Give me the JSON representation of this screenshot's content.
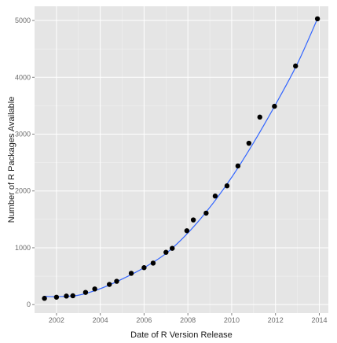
{
  "chart_data": {
    "type": "scatter",
    "title": "",
    "xlabel": "Date of R Version Release",
    "ylabel": "Number of R Packages Available",
    "xlim": [
      "2001-01-01",
      "2014-06-01"
    ],
    "ylim": [
      -150,
      5250
    ],
    "x_ticks": [
      {
        "date": "2002-01-01",
        "label": "2002"
      },
      {
        "date": "2004-01-01",
        "label": "2004"
      },
      {
        "date": "2006-01-01",
        "label": "2006"
      },
      {
        "date": "2008-01-01",
        "label": "2008"
      },
      {
        "date": "2010-01-01",
        "label": "2010"
      },
      {
        "date": "2012-01-01",
        "label": "2012"
      },
      {
        "date": "2014-01-01",
        "label": "2014"
      }
    ],
    "y_ticks": [
      0,
      1000,
      2000,
      3000,
      4000,
      5000
    ],
    "grid": true,
    "legend": "none",
    "background": "#e5e5e5",
    "grid_color": "#ffffff",
    "point_color": "#000000",
    "trend_color": "#3366ff",
    "series": [
      {
        "points": [
          {
            "x": "2001-06-15",
            "y": 110
          },
          {
            "x": "2002-01-01",
            "y": 130
          },
          {
            "x": "2002-06-15",
            "y": 150
          },
          {
            "x": "2002-10-01",
            "y": 155
          },
          {
            "x": "2003-05-01",
            "y": 215
          },
          {
            "x": "2003-10-01",
            "y": 275
          },
          {
            "x": "2004-06-01",
            "y": 355
          },
          {
            "x": "2004-10-01",
            "y": 410
          },
          {
            "x": "2005-06-01",
            "y": 550
          },
          {
            "x": "2006-01-01",
            "y": 650
          },
          {
            "x": "2006-06-01",
            "y": 730
          },
          {
            "x": "2007-01-01",
            "y": 920
          },
          {
            "x": "2007-04-15",
            "y": 990
          },
          {
            "x": "2007-12-15",
            "y": 1300
          },
          {
            "x": "2008-04-01",
            "y": 1490
          },
          {
            "x": "2008-11-01",
            "y": 1610
          },
          {
            "x": "2009-04-01",
            "y": 1910
          },
          {
            "x": "2009-10-15",
            "y": 2090
          },
          {
            "x": "2010-04-15",
            "y": 2440
          },
          {
            "x": "2010-10-15",
            "y": 2840
          },
          {
            "x": "2011-04-15",
            "y": 3300
          },
          {
            "x": "2011-12-15",
            "y": 3490
          },
          {
            "x": "2012-12-01",
            "y": 4200
          },
          {
            "x": "2013-12-01",
            "y": 5030
          }
        ]
      }
    ],
    "trend": [
      {
        "x": "2001-06-15",
        "y": 145
      },
      {
        "x": "2002-01-01",
        "y": 140
      },
      {
        "x": "2003-01-01",
        "y": 165
      },
      {
        "x": "2004-01-01",
        "y": 280
      },
      {
        "x": "2005-01-01",
        "y": 450
      },
      {
        "x": "2006-01-01",
        "y": 650
      },
      {
        "x": "2007-01-01",
        "y": 900
      },
      {
        "x": "2008-01-01",
        "y": 1260
      },
      {
        "x": "2009-01-01",
        "y": 1710
      },
      {
        "x": "2010-01-01",
        "y": 2240
      },
      {
        "x": "2011-01-01",
        "y": 2850
      },
      {
        "x": "2012-01-01",
        "y": 3520
      },
      {
        "x": "2013-01-01",
        "y": 4240
      },
      {
        "x": "2013-12-01",
        "y": 5030
      }
    ]
  }
}
